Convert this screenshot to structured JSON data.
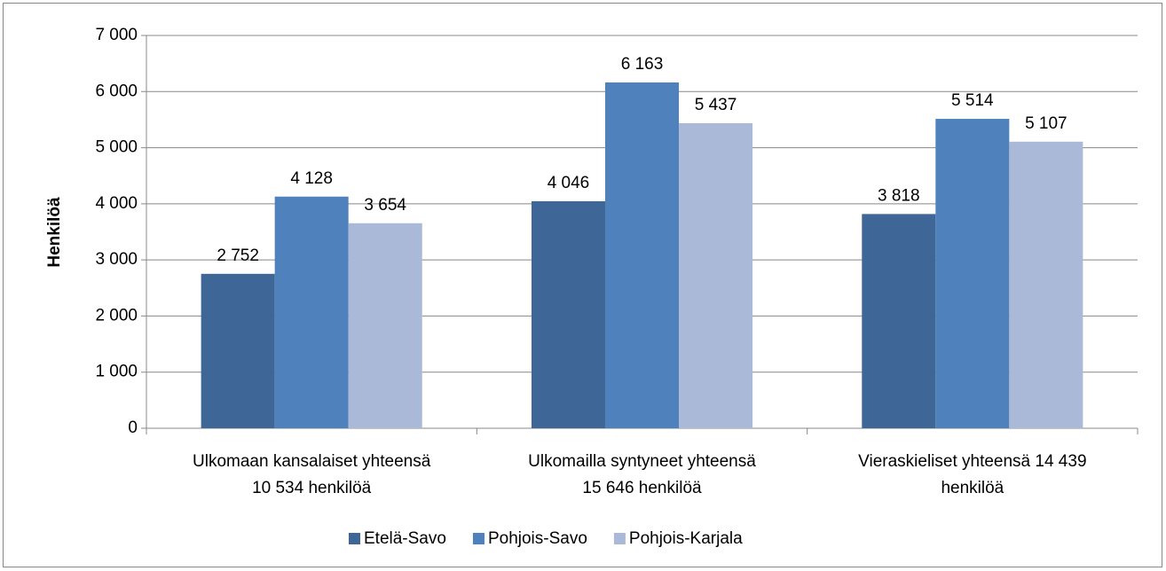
{
  "chart_data": {
    "type": "bar",
    "ylabel": "Henkilöä",
    "categories": [
      [
        "Ulkomaan kansalaiset yhteensä",
        "10 534 henkilöä"
      ],
      [
        "Ulkomailla syntyneet yhteensä",
        "15 646 henkilöä"
      ],
      [
        "Vieraskieliset yhteensä 14 439",
        "henkilöä"
      ]
    ],
    "series": [
      {
        "name": "Etelä-Savo",
        "color": "#3e6797",
        "values": [
          2752,
          4046,
          3818
        ],
        "value_labels": [
          "2 752",
          "4 046",
          "3 818"
        ]
      },
      {
        "name": "Pohjois-Savo",
        "color": "#4f81bd",
        "values": [
          4128,
          6163,
          5514
        ],
        "value_labels": [
          "4 128",
          "6 163",
          "5 514"
        ]
      },
      {
        "name": "Pohjois-Karjala",
        "color": "#aab9d7",
        "values": [
          3654,
          5437,
          5107
        ],
        "value_labels": [
          "3 654",
          "5 437",
          "5 107"
        ]
      }
    ],
    "ylim": [
      0,
      7000
    ],
    "yticks": [
      0,
      {
        "value": 1000,
        "label": "1 000"
      },
      {
        "value": 2000,
        "label": "2 000"
      },
      {
        "value": 3000,
        "label": "3 000"
      },
      {
        "value": 4000,
        "label": "4 000"
      },
      {
        "value": 5000,
        "label": "5 000"
      },
      {
        "value": 6000,
        "label": "6 000"
      },
      {
        "value": 7000,
        "label": "7 000"
      }
    ],
    "grid": true,
    "legend": "bottom"
  }
}
